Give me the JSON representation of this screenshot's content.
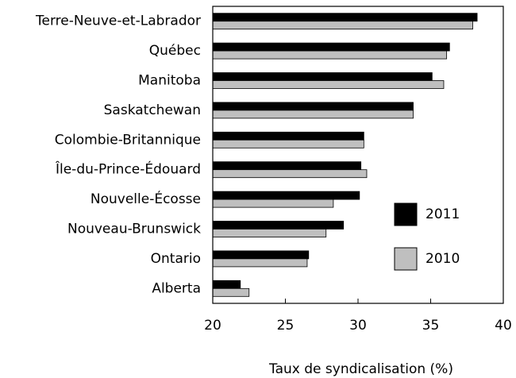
{
  "chart_data": {
    "type": "hbar",
    "xlabel": "Taux de syndicalisation (%)",
    "categories": [
      "Terre-Neuve-et-Labrador",
      "Québec",
      "Manitoba",
      "Saskatchewan",
      "Colombie-Britannique",
      "Île-du-Prince-Édouard",
      "Nouvelle-Écosse",
      "Nouveau-Brunswick",
      "Ontario",
      "Alberta"
    ],
    "series": [
      {
        "name": "2011",
        "color": "#000000",
        "values": [
          38.2,
          36.3,
          35.1,
          33.8,
          30.4,
          30.2,
          30.1,
          29.0,
          26.6,
          21.9
        ]
      },
      {
        "name": "2010",
        "color": "#bfbfbf",
        "values": [
          37.9,
          36.1,
          35.9,
          33.8,
          30.4,
          30.6,
          28.3,
          27.8,
          26.5,
          22.5
        ]
      }
    ],
    "xlim": [
      20,
      40
    ],
    "xticks": [
      20,
      25,
      30,
      35,
      40
    ],
    "grid": false
  }
}
